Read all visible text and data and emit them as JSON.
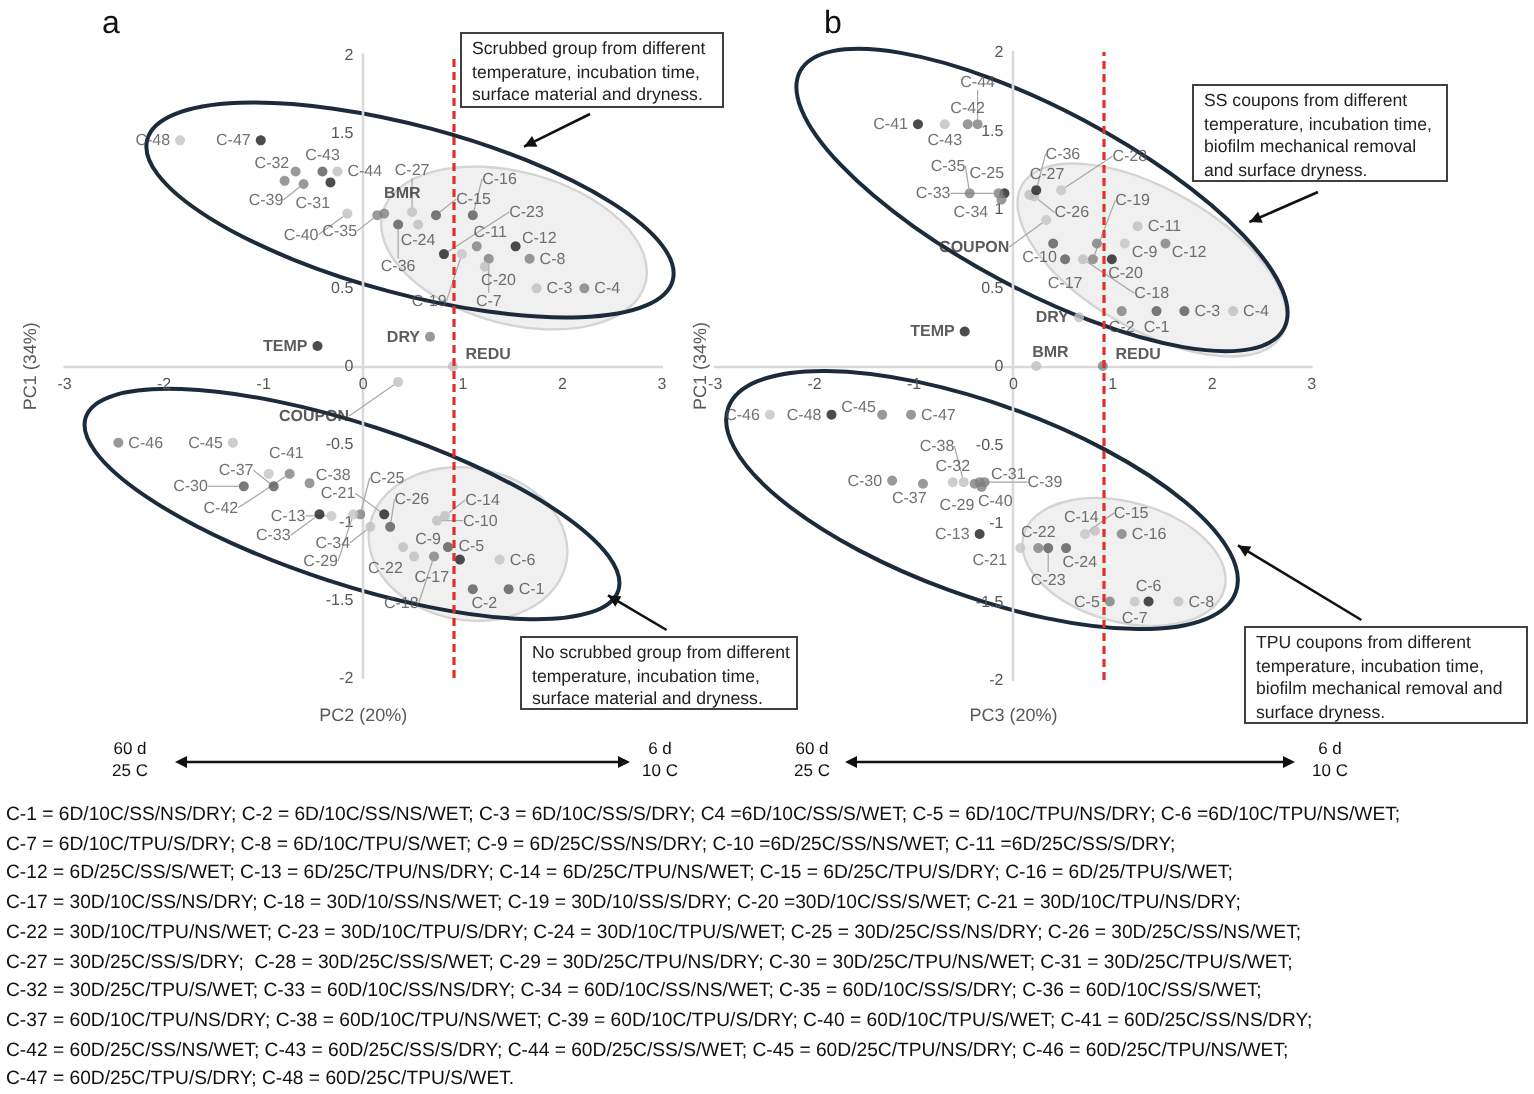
{
  "chart_data": [
    {
      "type": "scatter",
      "title": "a",
      "xlabel": "PC2 (20%)",
      "ylabel": "PC1 (34%)",
      "xlim": [
        -3,
        3
      ],
      "ylim": [
        -2,
        2
      ],
      "xticks": [
        -3,
        -2,
        -1,
        0,
        1,
        2,
        3
      ],
      "yticks": [
        -2,
        -1.5,
        -1,
        -0.5,
        0,
        0.5,
        1.5,
        2
      ],
      "marker": "circle",
      "ref_lines": [
        {
          "axis": "x",
          "value": 0.9,
          "color": "#e0302a",
          "line_style": "dashed"
        }
      ],
      "series": [
        {
          "x": [
            1.46,
            1.1,
            1.74,
            2.22,
            0.97,
            1.37,
            1.26,
            1.67,
            0.85,
            0.74,
            1.14,
            1.53,
            -0.32,
            0.82,
            0.73,
            1.1,
            0.51,
            0.71,
            0.99,
            1.22,
            0.21,
            0.4,
            0.81,
            0.55,
            -0.03,
            0.27,
            0.49,
            -0.1,
            -1.2,
            -0.33,
            -0.68,
            -0.44,
            0.07,
            0.14,
            0.35,
            -0.9,
            -0.54,
            -0.6,
            -0.16,
            -0.95,
            -0.74,
            -0.41,
            -0.26,
            -1.31,
            -2.46,
            -1.03,
            -1.84,
            -0.79
          ],
          "values": [
            -1.43,
            -1.43,
            0.5,
            0.5,
            -1.24,
            -1.24,
            0.69,
            0.69,
            -1.16,
            -0.99,
            0.77,
            0.77,
            -0.96,
            -0.96,
            0.97,
            0.97,
            -1.22,
            -1.22,
            0.72,
            0.64,
            -0.95,
            -1.16,
            0.72,
            0.91,
            -0.95,
            -1.03,
            0.99,
            -0.95,
            -0.77,
            1.18,
            1.25,
            -0.95,
            -1.03,
            0.97,
            0.91,
            -0.77,
            -0.75,
            1.17,
            0.98,
            -0.69,
            -0.69,
            1.25,
            1.25,
            -0.49,
            -0.49,
            1.45,
            1.45,
            1.19
          ],
          "colors": [
            "#595959",
            "#595959",
            "#bfbfbf",
            "#7f7f7f",
            "#1f1f1f",
            "#c4c4c4",
            "#7f7f7f",
            "#7f7f7f",
            "#595959",
            "#bfbfbf",
            "#7f7f7f",
            "#1f1f1f",
            "#c4c4c4",
            "#bfbfbf",
            "#595959",
            "#595959",
            "#bfbfbf",
            "#7f7f7f",
            "#c4c4c4",
            "#bfbfbf",
            "#1f1f1f",
            "#bfbfbf",
            "#1f1f1f",
            "#bfbfbf",
            "#7f7f7f",
            "#595959",
            "#bfbfbf",
            "#c4c4c4",
            "#595959",
            "#1f1f1f",
            "#7f7f7f",
            "#1f1f1f",
            "#bfbfbf",
            "#7f7f7f",
            "#595959",
            "#595959",
            "#7f7f7f",
            "#7f7f7f",
            "#bfbfbf",
            "#c4c4c4",
            "#7f7f7f",
            "#595959",
            "#bfbfbf",
            "#bfbfbf",
            "#7f7f7f",
            "#1f1f1f",
            "#c4c4c4",
            "#7f7f7f"
          ],
          "value_labels": [
            "C-1",
            "C-2",
            "C-3",
            "C-4",
            "C-5",
            "C-6",
            "C-7",
            "C-8",
            "C-9",
            "C-10",
            "C-11",
            "C-12",
            "C-13",
            "C-14",
            "C-15",
            "C-16",
            "C-17",
            "C-18",
            "C-19",
            "C-20",
            "C-21",
            "C-22",
            "C-23",
            "C-24",
            "C-25",
            "C-26",
            "C-27",
            "C-29",
            "C-30",
            "C-31",
            "C-32",
            "C-33",
            "C-34",
            "C-35",
            "C-36",
            "C-37",
            "C-38",
            "C-39",
            "C-40",
            "C-41",
            "C-42",
            "C-43",
            "C-44",
            "C-45",
            "C-46",
            "C-47",
            "C-48",
            null
          ]
        },
        {
          "x": [
            0.21,
            -0.46,
            0.67,
            0.9,
            0.35
          ],
          "values": [
            0.98,
            0.13,
            0.19,
            0,
            -0.1
          ],
          "colors": [
            "#7f7f7f",
            "#1f1f1f",
            "#7f7f7f",
            "#bfbfbf",
            "#bfbfbf"
          ],
          "value_labels": [
            "BMR",
            "TEMP",
            "DRY",
            "REDU",
            "COUPON"
          ]
        }
      ],
      "annotations": [
        "Scrubbed group from different temperature, incubation time, surface material and dryness.",
        "No scrubbed group from different temperature, incubation time, surface material and dryness.",
        "60 d",
        "25 C",
        "6 d",
        "10 C"
      ]
    },
    {
      "type": "scatter",
      "title": "b",
      "xlabel": "PC3 (20%)",
      "ylabel": "PC1 (34%)",
      "xlim": [
        -3,
        3
      ],
      "ylim": [
        -2,
        2
      ],
      "xticks": [
        -3,
        -2,
        -1,
        0,
        1,
        2,
        3
      ],
      "yticks": [
        -2,
        -1.5,
        -1,
        -0.5,
        0,
        0.5,
        1,
        1.5,
        2
      ],
      "marker": "circle",
      "ref_lines": [
        {
          "axis": "x",
          "value": 0.9,
          "color": "#e0302a",
          "line_style": "dashed"
        }
      ],
      "series": [
        {
          "x": [
            1.44,
            1.09,
            1.72,
            2.21,
            0.97,
            1.36,
            1.22,
            1.66,
            1.12,
            0.4,
            1.25,
            1.53,
            -0.34,
            0.82,
            0.72,
            1.09,
            0.52,
            0.7,
            0.8,
            0.99,
            0.07,
            0.25,
            0.35,
            0.53,
            -0.09,
            0.21,
            0.16,
            0.48,
            -0.39,
            -1.22,
            -0.29,
            -0.61,
            -0.15,
            -0.12,
            -0.44,
            0.23,
            -0.91,
            -0.5,
            -0.34,
            -0.32,
            -0.96,
            -0.46,
            -0.69,
            -0.36,
            -1.32,
            -2.45,
            -1.03,
            -1.83,
            0.84
          ],
          "values": [
            0.35,
            0.35,
            0.35,
            0.35,
            -1.5,
            -1.5,
            -1.5,
            -1.5,
            0.78,
            0.78,
            0.89,
            0.78,
            -1.07,
            -1.05,
            -1.07,
            -1.07,
            0.68,
            0.68,
            0.68,
            0.68,
            -1.16,
            -1.16,
            -1.16,
            -1.16,
            1.1,
            1.08,
            1.09,
            1.12,
            -0.75,
            -0.73,
            -0.74,
            -0.74,
            1.1,
            1.06,
            1.1,
            1.12,
            -0.75,
            -0.74,
            -0.74,
            -0.77,
            1.54,
            1.54,
            1.54,
            1.54,
            -0.31,
            -0.31,
            -0.31,
            -0.31,
            0.78
          ],
          "colors": [
            "#595959",
            "#7f7f7f",
            "#595959",
            "#bfbfbf",
            "#7f7f7f",
            "#1f1f1f",
            "#c4c4c4",
            "#bfbfbf",
            "#c4c4c4",
            "#595959",
            "#bfbfbf",
            "#7f7f7f",
            "#1f1f1f",
            "#bfbfbf",
            "#c4c4c4",
            "#7f7f7f",
            "#595959",
            "#bfbfbf",
            "#7f7f7f",
            "#1f1f1f",
            "#c4c4c4",
            "#7f7f7f",
            "#595959",
            "#595959",
            "#1f1f1f",
            "#bfbfbf",
            "#bfbfbf",
            "#c4c4c4",
            "#7f7f7f",
            "#7f7f7f",
            "#7f7f7f",
            "#bfbfbf",
            "#7f7f7f",
            "#7f7f7f",
            "#7f7f7f",
            "#1f1f1f",
            "#7f7f7f",
            "#bfbfbf",
            "#7f7f7f",
            "#7f7f7f",
            "#1f1f1f",
            "#7f7f7f",
            "#bfbfbf",
            "#7f7f7f",
            "#7f7f7f",
            "#c4c4c4",
            "#7f7f7f",
            "#1f1f1f",
            "#7f7f7f"
          ],
          "value_labels": [
            "C-1",
            "C-2",
            "C-3",
            "C-4",
            "C-5",
            "C-6",
            "C-7",
            "C-8",
            "C-9",
            "C-10",
            "C-11",
            "C-12",
            "C-13",
            "C-14",
            "C-15",
            "C-16",
            "C-17",
            "C-18",
            "C-19",
            "C-20",
            "C-21",
            "C-22",
            "C-23",
            "C-24",
            "C-25",
            "C-26",
            "C-27",
            "C-28",
            "C-29",
            "C-30",
            "C-31",
            "C-32",
            "C-33",
            "C-34",
            "C-35",
            "C-36",
            "C-37",
            "C-38",
            "C-39",
            "C-40",
            "C-41",
            "C-42",
            "C-43",
            "C-44",
            "C-45",
            "C-46",
            "C-47",
            "C-48",
            null
          ]
        },
        {
          "x": [
            0.33,
            0.66,
            0.9,
            -0.49,
            0.23
          ],
          "values": [
            0.93,
            0.31,
            0,
            0.22,
            0
          ],
          "colors": [
            "#c4c4c4",
            "#bfbfbf",
            "#7f7f7f",
            "#1f1f1f",
            "#bfbfbf"
          ],
          "value_labels": [
            "COUPON",
            "DRY",
            "REDU",
            "TEMP",
            "BMR"
          ]
        }
      ],
      "annotations": [
        "SS coupons from different temperature, incubation time, biofilm mechanical removal and surface dryness.",
        "TPU coupons from different temperature, incubation time, biofilm mechanical removal and surface dryness.",
        "60 d",
        "25 C",
        "6 d",
        "10 C"
      ]
    },
    {
      "type": "other",
      "annotations": [
        "C-1 = 6D/10C/SS/NS/DRY; C-2 = 6D/10C/SS/NS/WET; C-3 = 6D/10C/SS/S/DRY; C4 =6D/10C/SS/S/WET; C-5 = 6D/10C/TPU/NS/DRY; C-6 =6D/10C/TPU/NS/WET;",
        "C-7 = 6D/10C/TPU/S/DRY; C-8 = 6D/10C/TPU/S/WET; C-9 = 6D/25C/SS/NS/DRY; C-10 =6D/25C/SS/NS/WET; C-11 =6D/25C/SS/S/DRY;",
        "C-12 = 6D/25C/SS/S/WET; C-13 = 6D/25C/TPU/NS/DRY; C-14 = 6D/25C/TPU/NS/WET; C-15 = 6D/25C/TPU/S/DRY; C-16 = 6D/25/TPU/S/WET;",
        "C-17 = 30D/10C/SS/NS/DRY; C-18 = 30D/10/SS/NS/WET; C-19 = 30D/10/SS/S/DRY; C-20 =30D/10C/SS/S/WET; C-21 = 30D/10C/TPU/NS/DRY;",
        "C-22 = 30D/10C/TPU/NS/WET; C-23 = 30D/10C/TPU/S/DRY; C-24 = 30D/10C/TPU/S/WET; C-25 = 30D/25C/SS/NS/DRY; C-26 = 30D/25C/SS/NS/WET;",
        "C-27 = 30D/25C/SS/S/DRY;  C-28 = 30D/25C/SS/S/WET; C-29 = 30D/25C/TPU/NS/DRY; C-30 = 30D/25C/TPU/NS/WET; C-31 = 30D/25C/TPU/S/WET;",
        "C-32 = 30D/25C/TPU/S/WET; C-33 = 60D/10C/SS/NS/DRY; C-34 = 60D/10C/SS/NS/WET; C-35 = 60D/10C/SS/S/DRY; C-36 = 60D/10C/SS/S/WET;",
        "C-37 = 60D/10C/TPU/NS/DRY; C-38 = 60D/10C/TPU/NS/WET; C-39 = 60D/10C/TPU/S/DRY; C-40 = 60D/10C/TPU/S/WET; C-41 = 60D/25C/SS/NS/DRY;",
        "C-42 = 60D/25C/SS/NS/WET; C-43 = 60D/25C/SS/S/DRY; C-44 = 60D/25C/SS/S/WET; C-45 = 60D/25C/TPU/NS/DRY; C-46 = 60D/25C/TPU/NS/WET;",
        "C-47 = 60D/25C/TPU/S/DRY; C-48 = 60D/25C/TPU/S/WET."
      ]
    }
  ]
}
